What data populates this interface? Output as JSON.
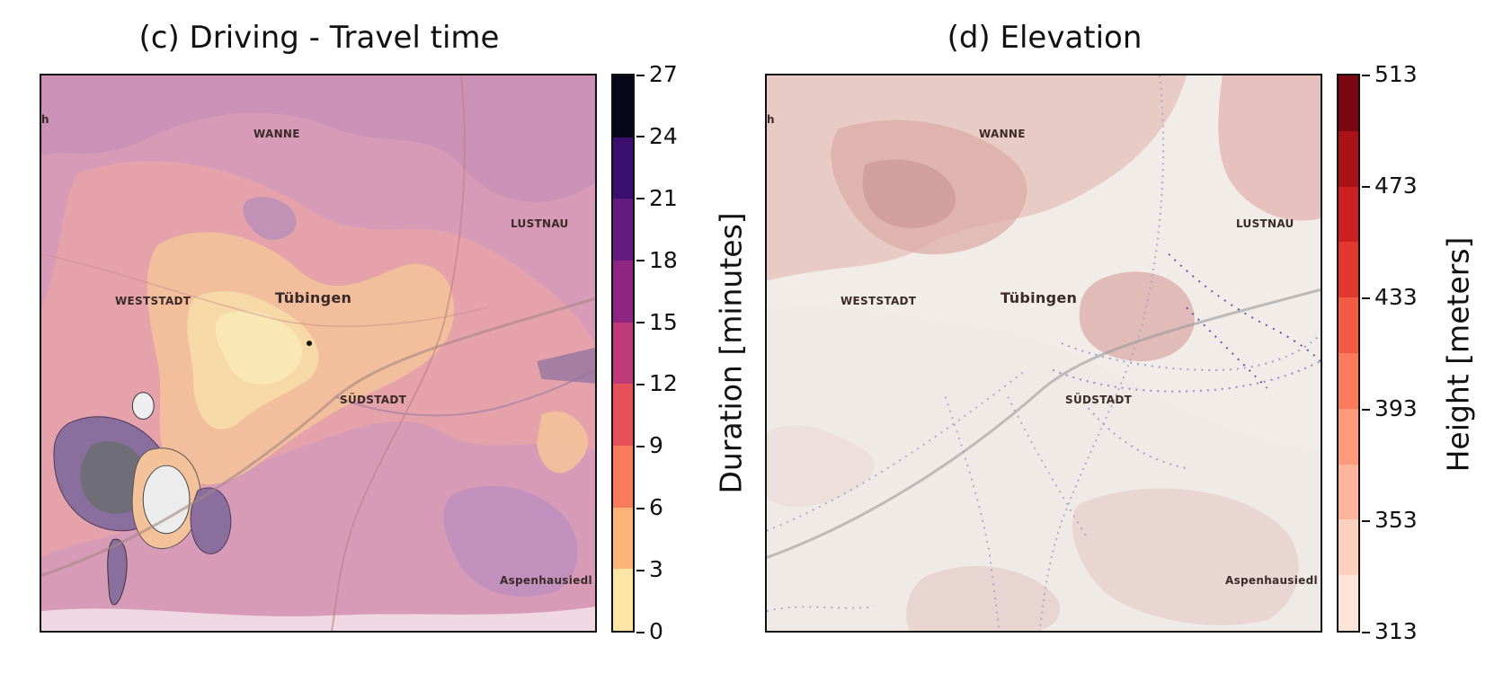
{
  "panels": [
    {
      "title": "(c) Driving - Travel time",
      "colorbar": {
        "label": "Duration [minutes]",
        "ticks": [
          "0",
          "3",
          "6",
          "9",
          "12",
          "15",
          "18",
          "21",
          "24",
          "27"
        ],
        "min": 0,
        "max": 27,
        "colors": [
          "#fde5a5",
          "#fdb47b",
          "#f97b5d",
          "#e5505b",
          "#bf3a78",
          "#8f2582",
          "#651a80",
          "#3b0f70",
          "#07071a"
        ]
      }
    },
    {
      "title": "(d) Elevation",
      "colorbar": {
        "label": "Height [meters]",
        "ticks": [
          "313",
          "353",
          "393",
          "433",
          "473",
          "513"
        ],
        "min": 313,
        "max": 513,
        "colors": [
          "#fee5d9",
          "#fcd0bf",
          "#fcb59a",
          "#fc9a7a",
          "#fb7b5b",
          "#f35c42",
          "#e3382d",
          "#cb1f22",
          "#ab1217",
          "#7a0811"
        ]
      }
    }
  ],
  "map_labels": {
    "wanne": "WANNE",
    "lustnau": "LUSTNAU",
    "weststadt": "WESTSTADT",
    "tuebingen": "Tübingen",
    "suedstadt": "SÜDSTADT",
    "aspenhausiedl": "Aspenhausiedl",
    "edge_h": "h"
  }
}
